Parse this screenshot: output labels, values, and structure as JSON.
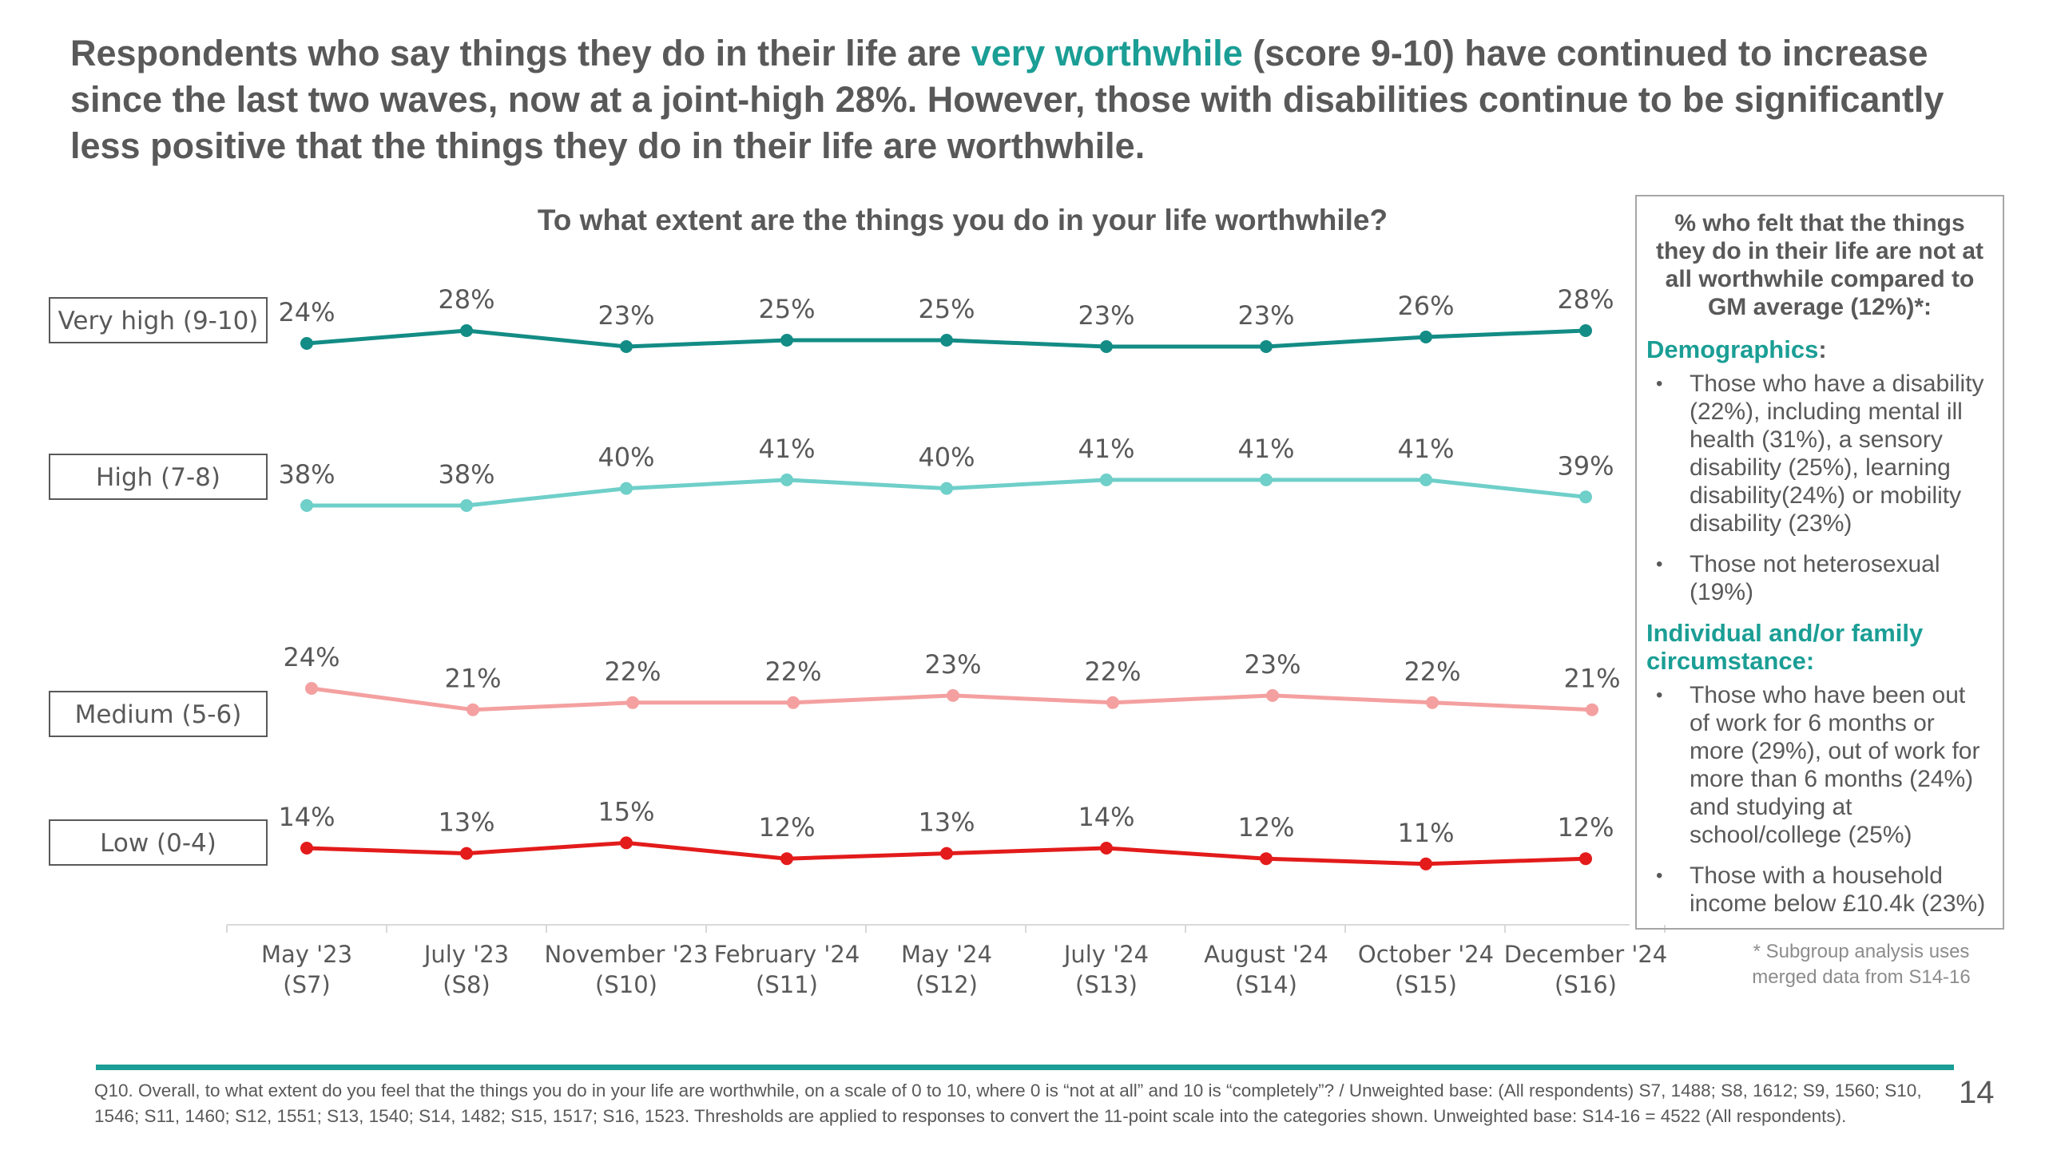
{
  "headline": {
    "pre": "Respondents who say things they do in their life are ",
    "highlight": "very worthwhile",
    "post": " (score 9-10) have continued to increase since the last two waves, now at a joint-high 28%. However, those with disabilities continue to be significantly less positive that the things they do in their life are worthwhile."
  },
  "colors": {
    "very_high": "#138c85",
    "high": "#6fcfc9",
    "medium": "#f4a0a0",
    "low": "#e31b1b",
    "accent": "#1a9e95"
  },
  "chart_data": {
    "type": "line",
    "title": "To what extent are the things you do in your life worthwhile?",
    "x": [
      "May '23",
      "July '23",
      "November '23",
      "February '24",
      "May '24",
      "July '24",
      "August '24",
      "October '24",
      "December '24"
    ],
    "x_sub": [
      "(S7)",
      "(S8)",
      "(S10)",
      "(S11)",
      "(S12)",
      "(S13)",
      "(S14)",
      "(S15)",
      "(S16)"
    ],
    "unit": "%",
    "legend": "left",
    "grid": false,
    "series": [
      {
        "name": "Very high (9-10)",
        "values": [
          24,
          28,
          23,
          25,
          25,
          23,
          23,
          26,
          28
        ]
      },
      {
        "name": "High (7-8)",
        "values": [
          38,
          38,
          40,
          41,
          40,
          41,
          41,
          41,
          39
        ]
      },
      {
        "name": "Medium (5-6)",
        "values": [
          24,
          21,
          22,
          22,
          23,
          22,
          23,
          22,
          21
        ]
      },
      {
        "name": "Low (0-4)",
        "values": [
          14,
          13,
          15,
          12,
          13,
          14,
          12,
          11,
          12
        ]
      }
    ]
  },
  "sidebox": {
    "title": "% who felt that the things they do in their life are not at all worthwhile compared to GM average (12%)*:",
    "sections": [
      {
        "heading": "Demographics",
        "heading_suffix": ":",
        "items": [
          "Those who have a disability (22%), including mental ill health (31%), a sensory disability (25%), learning disability(24%) or mobility disability (23%)",
          "Those not heterosexual (19%)"
        ]
      },
      {
        "heading": "Individual and/or family circumstance:",
        "heading_suffix": "",
        "items": [
          "Those who have been out of work for 6 months or more (29%), out of work for more than 6 months (24%) and studying at school/college (25%)",
          "Those with a household income below £10.4k (23%)"
        ]
      }
    ]
  },
  "subgroup_note": "* Subgroup analysis uses merged data from S14-16",
  "source": "Q10. Overall, to what extent do you feel that the things you do in your life are worthwhile, on a scale of 0 to 10, where 0 is “not at all” and 10 is “completely”? / Unweighted base: (All respondents) S7, 1488; S8, 1612; S9, 1560; S10, 1546; S11, 1460; S12, 1551; S13, 1540; S14, 1482; S15, 1517; S16, 1523. Thresholds are applied to responses to convert the 11-point scale into the categories shown. Unweighted base: S14-16 = 4522 (All respondents).",
  "page_number": "14"
}
